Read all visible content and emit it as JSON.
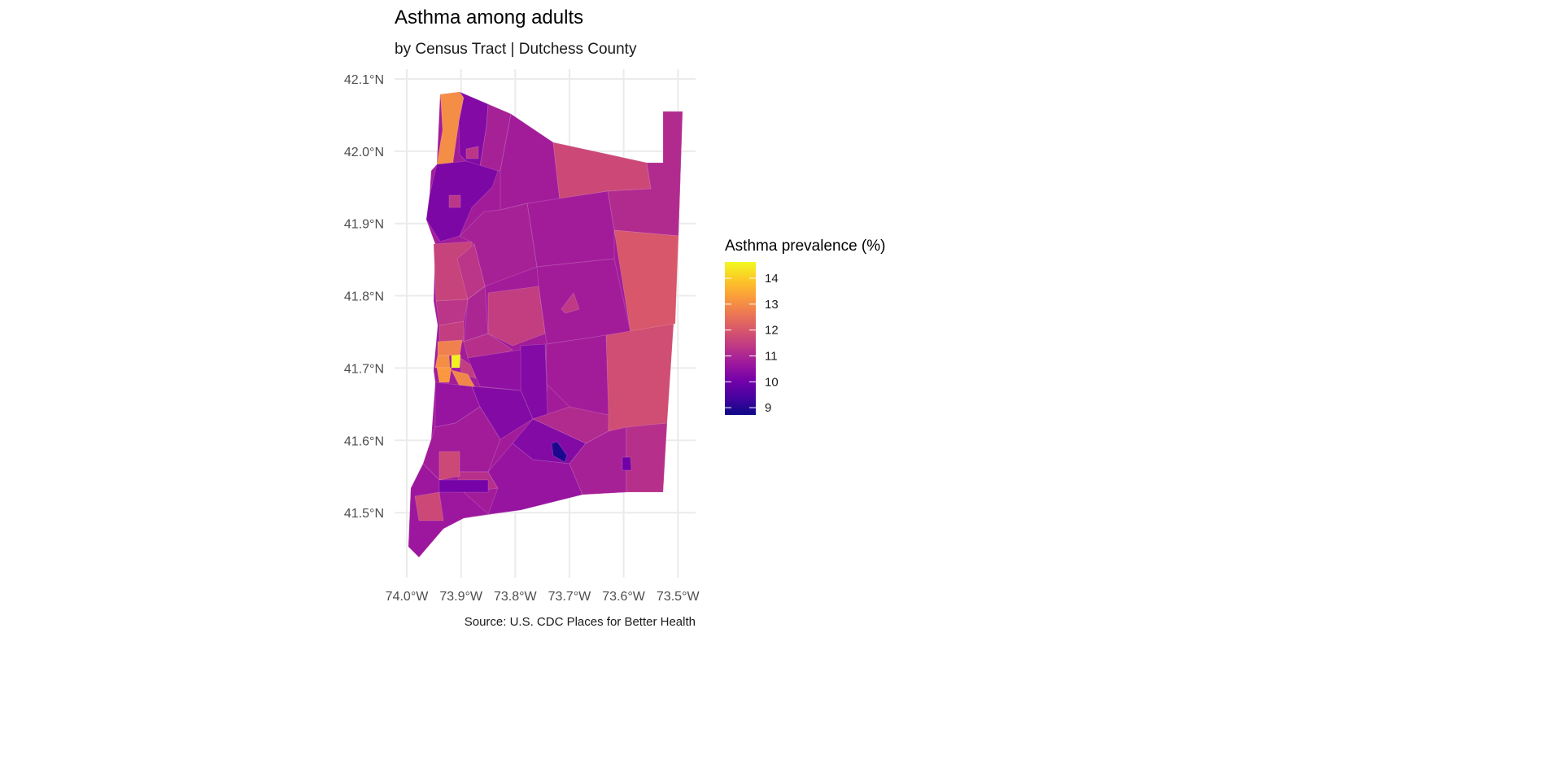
{
  "chart_data": {
    "type": "choropleth",
    "title": "Asthma among adults",
    "subtitle": "by Census Tract | Dutchess County",
    "caption": "Source: U.S. CDC Places for Better Health",
    "x_ticks": [
      "74.0°W",
      "73.9°W",
      "73.8°W",
      "73.7°W",
      "73.6°W",
      "73.5°W"
    ],
    "x_tick_values": [
      -74.0,
      -73.9,
      -73.8,
      -73.7,
      -73.6,
      -73.5
    ],
    "y_ticks": [
      "42.1°N",
      "42.0°N",
      "41.9°N",
      "41.8°N",
      "41.7°N",
      "41.6°N",
      "41.5°N"
    ],
    "y_tick_values": [
      42.1,
      42.0,
      41.9,
      41.8,
      41.7,
      41.6,
      41.5
    ],
    "legend": {
      "title": "Asthma prevalence (%)",
      "labels": [
        "14",
        "13",
        "12",
        "11",
        "10",
        "9"
      ],
      "values": [
        14,
        13,
        12,
        11,
        10,
        9
      ],
      "range": [
        8.72,
        14.63
      ],
      "palette": "plasma",
      "placement": "right"
    },
    "tracts": [
      {
        "area": "county-base",
        "value": 10.8
      },
      {
        "area": "northwest-river-strip",
        "value": 13.0
      },
      {
        "area": "north-purple-strip",
        "value": 10.3
      },
      {
        "area": "north-magenta",
        "value": 10.9
      },
      {
        "area": "north-central",
        "value": 10.8
      },
      {
        "area": "northeast",
        "value": 11.7
      },
      {
        "area": "far-northeast-column",
        "value": 11.1
      },
      {
        "area": "east-central",
        "value": 12.0
      },
      {
        "area": "central-north",
        "value": 10.8
      },
      {
        "area": "central",
        "value": 10.8
      },
      {
        "area": "east-south",
        "value": 11.8
      },
      {
        "area": "central-south",
        "value": 10.8
      },
      {
        "area": "west-river-north",
        "value": 10.2
      },
      {
        "area": "west-central-1",
        "value": 10.9
      },
      {
        "area": "west-river-2",
        "value": 11.6
      },
      {
        "area": "west-2b",
        "value": 11.3
      },
      {
        "area": "west-3",
        "value": 11.3
      },
      {
        "area": "west-3b",
        "value": 11.0
      },
      {
        "area": "central-pink",
        "value": 11.5
      },
      {
        "area": "west-4",
        "value": 11.5
      },
      {
        "area": "west-5",
        "value": 12.8
      },
      {
        "area": "west-6",
        "value": 11.2
      },
      {
        "area": "poughkeepsie-1",
        "value": 13.0
      },
      {
        "area": "poughkeepsie-2",
        "value": 14.5
      },
      {
        "area": "poughkeepsie-3",
        "value": 11.5
      },
      {
        "area": "poughkeepsie-4",
        "value": 13.2
      },
      {
        "area": "poughkeepsie-5",
        "value": 12.9
      },
      {
        "area": "south-central-1",
        "value": 10.5
      },
      {
        "area": "south-central-2",
        "value": 10.3
      },
      {
        "area": "south-west-1",
        "value": 10.6
      },
      {
        "area": "south-west-2",
        "value": 10.3
      },
      {
        "area": "south-east-1",
        "value": 11.1
      },
      {
        "area": "south-east-2",
        "value": 10.3
      },
      {
        "area": "south-west-3",
        "value": 10.8
      },
      {
        "area": "south-west-4",
        "value": 11.2
      },
      {
        "area": "south-west-5",
        "value": 11.7
      },
      {
        "area": "south-1",
        "value": 10.6
      },
      {
        "area": "south-2",
        "value": 10.9
      },
      {
        "area": "south-3",
        "value": 11.2
      },
      {
        "area": "southwest-corner",
        "value": 10.7
      },
      {
        "area": "southwest-corner-2",
        "value": 11.7
      },
      {
        "area": "south-strip",
        "value": 10.1
      },
      {
        "area": "south-dark",
        "value": 8.9
      },
      {
        "area": "south-east-small",
        "value": 10.0
      },
      {
        "area": "north-small-1",
        "value": 11.3
      },
      {
        "area": "north-small-2",
        "value": 11.3
      },
      {
        "area": "east-inner",
        "value": 11.4
      }
    ]
  }
}
